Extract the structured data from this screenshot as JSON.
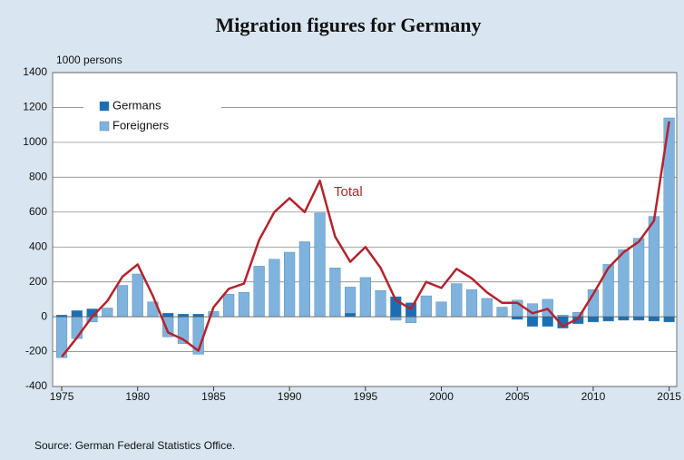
{
  "chart_data": {
    "type": "bar",
    "title": "Migration figures for Germany",
    "y_unit_label": "1000 persons",
    "source": "Source: German Federal Statistics Office.",
    "x": [
      1975,
      1976,
      1977,
      1978,
      1979,
      1980,
      1981,
      1982,
      1983,
      1984,
      1985,
      1986,
      1987,
      1988,
      1989,
      1990,
      1991,
      1992,
      1993,
      1994,
      1995,
      1996,
      1997,
      1998,
      1999,
      2000,
      2001,
      2002,
      2003,
      2004,
      2005,
      2006,
      2007,
      2008,
      2009,
      2010,
      2011,
      2012,
      2013,
      2014,
      2015
    ],
    "series": [
      {
        "name": "Germans",
        "color": "#1a6fb4",
        "values": [
          10,
          35,
          45,
          0,
          0,
          0,
          0,
          20,
          15,
          15,
          0,
          0,
          0,
          0,
          0,
          0,
          0,
          0,
          0,
          20,
          0,
          0,
          115,
          80,
          0,
          0,
          0,
          0,
          0,
          0,
          -15,
          -55,
          -55,
          -65,
          -40,
          -30,
          -25,
          -20,
          -20,
          -25,
          -30
        ]
      },
      {
        "name": "Foreigners",
        "color": "#7fb3de",
        "values": [
          -235,
          -125,
          -30,
          50,
          180,
          245,
          85,
          -115,
          -155,
          -215,
          30,
          130,
          140,
          290,
          330,
          370,
          430,
          595,
          280,
          150,
          225,
          150,
          -20,
          -35,
          120,
          85,
          190,
          155,
          105,
          55,
          95,
          75,
          100,
          10,
          25,
          155,
          300,
          385,
          450,
          575,
          1140
        ]
      },
      {
        "name": "Total",
        "type": "line",
        "color": "#b5232d",
        "values": [
          -230,
          -120,
          0,
          90,
          230,
          300,
          120,
          -90,
          -130,
          -195,
          55,
          160,
          190,
          440,
          600,
          680,
          600,
          780,
          460,
          315,
          400,
          280,
          95,
          45,
          200,
          165,
          275,
          220,
          140,
          80,
          80,
          20,
          45,
          -55,
          -10,
          130,
          280,
          370,
          430,
          550,
          1120
        ]
      }
    ],
    "annotations": [
      {
        "text": "Total"
      }
    ],
    "xlim": [
      1974.4,
      2015.5
    ],
    "xticks": [
      1975,
      1980,
      1985,
      1990,
      1995,
      2000,
      2005,
      2010,
      2015
    ],
    "ylim": [
      -400,
      1400
    ],
    "yticks": [
      -400,
      -200,
      0,
      200,
      400,
      600,
      800,
      1000,
      1200,
      1400
    ],
    "grid": true,
    "legend": "upper left"
  }
}
